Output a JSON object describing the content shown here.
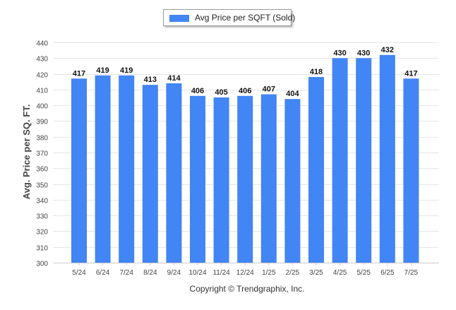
{
  "chart_data": {
    "type": "bar",
    "categories": [
      "5/24",
      "6/24",
      "7/24",
      "8/24",
      "9/24",
      "10/24",
      "11/24",
      "12/24",
      "1/25",
      "2/25",
      "3/25",
      "4/25",
      "5/25",
      "6/25",
      "7/25"
    ],
    "series": [
      {
        "name": "Avg Price per SQFT (Sold)",
        "values": [
          417,
          419,
          419,
          413,
          414,
          406,
          405,
          406,
          407,
          404,
          418,
          430,
          430,
          432,
          417
        ]
      }
    ],
    "ylabel": "Avg. Price per SQ. FT.",
    "xlabel": "",
    "ylim": [
      300,
      440
    ],
    "yticks": [
      300,
      310,
      320,
      330,
      340,
      350,
      360,
      370,
      380,
      390,
      400,
      410,
      420,
      430,
      440
    ],
    "grid": true,
    "legend": "top-center",
    "data_labels": true,
    "colors": {
      "bar": "#4285f4",
      "grid": "#e6e6e6",
      "text": "#444444"
    }
  },
  "footer": {
    "copyright": "Copyright © Trendgraphix, Inc."
  }
}
